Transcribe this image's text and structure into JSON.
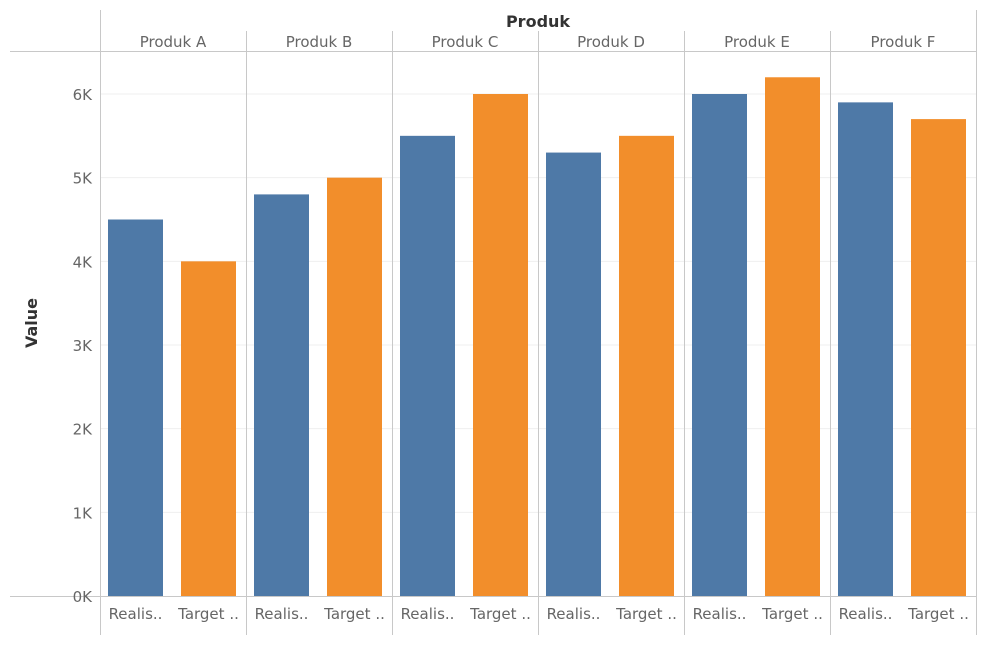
{
  "chart_data": {
    "type": "bar",
    "title": "",
    "column_header": "Produk",
    "ylabel": "Value",
    "xlabel": "",
    "ylim": [
      0,
      6500
    ],
    "yticks": [
      0,
      1000,
      2000,
      3000,
      4000,
      5000,
      6000
    ],
    "ytick_labels": [
      "0K",
      "1K",
      "2K",
      "3K",
      "4K",
      "5K",
      "6K"
    ],
    "categories": [
      "Produk A",
      "Produk B",
      "Produk C",
      "Produk D",
      "Produk E",
      "Produk F"
    ],
    "sub_labels": [
      "Realis..",
      "Target .."
    ],
    "series": [
      {
        "name": "Realisasi",
        "color": "#4e79a7",
        "values": [
          4500,
          4800,
          5500,
          5300,
          6000,
          5900
        ]
      },
      {
        "name": "Target",
        "color": "#f28e2b",
        "values": [
          4000,
          5000,
          6000,
          5500,
          6200,
          5700
        ]
      }
    ],
    "grid": true
  }
}
